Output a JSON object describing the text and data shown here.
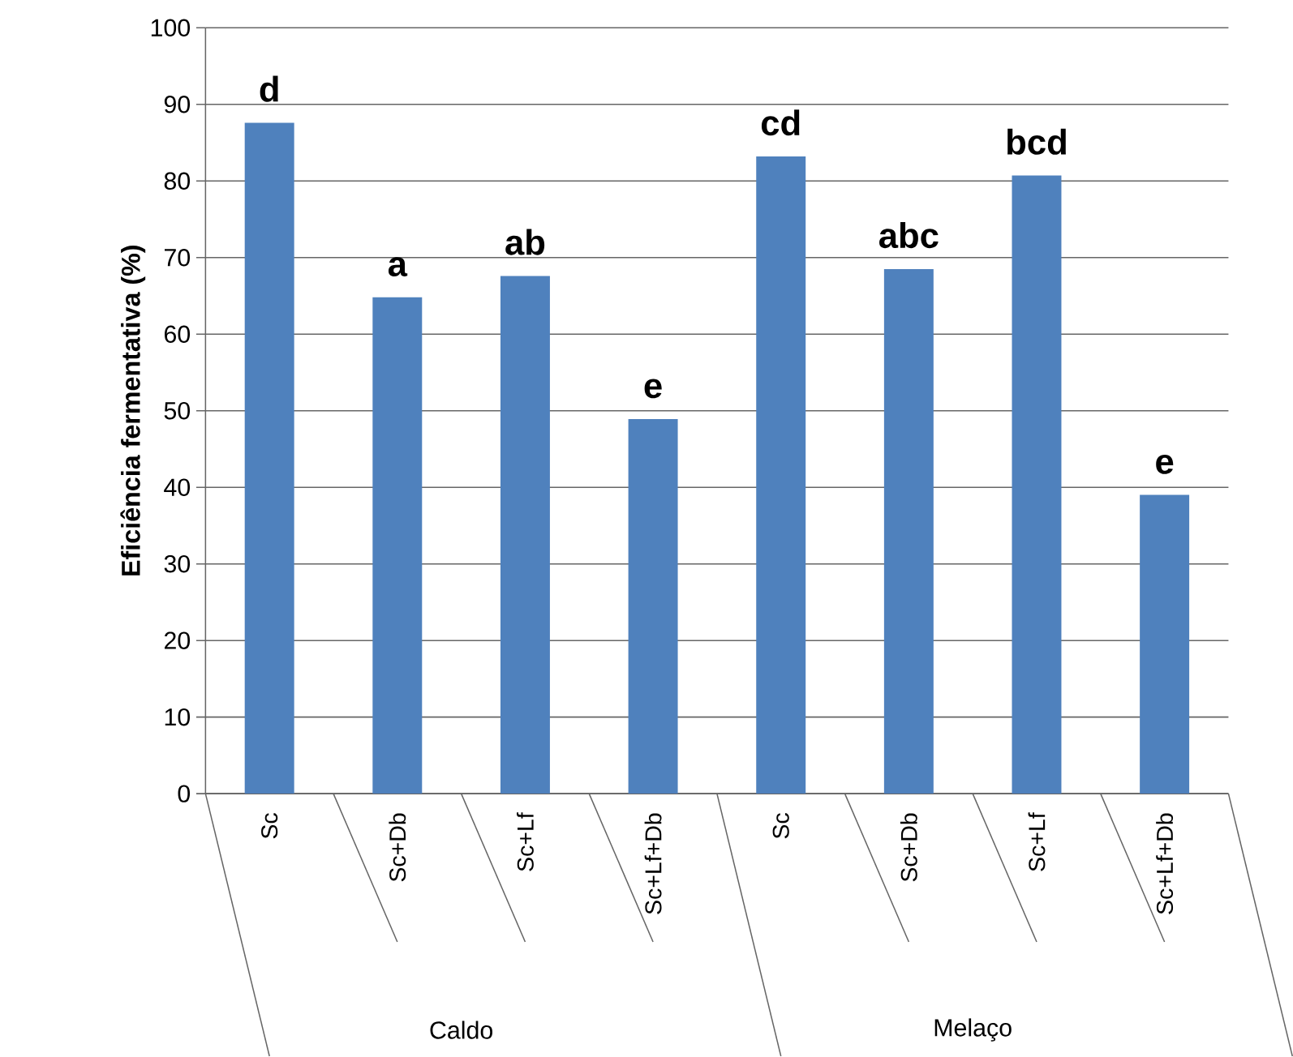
{
  "chart_data": {
    "type": "bar",
    "ylabel": "Eficiência fermentativa (%)",
    "categories": [
      "Sc",
      "Sc+Db",
      "Sc+Lf",
      "Sc+Lf+Db",
      "Sc",
      "Sc+Db",
      "Sc+Lf",
      "Sc+Lf+Db"
    ],
    "values": [
      87.6,
      64.8,
      67.6,
      48.9,
      83.2,
      68.5,
      80.7,
      39.0
    ],
    "value_labels": [
      "d",
      "a",
      "ab",
      "e",
      "cd",
      "abc",
      "bcd",
      "e"
    ],
    "color": "#4f81bd",
    "annotations": [
      "Caldo",
      "Melaço"
    ],
    "ylim": [
      0,
      100
    ],
    "yticks": [
      0,
      10,
      20,
      30,
      40,
      50,
      60,
      70,
      80,
      90,
      100
    ],
    "grid": "y"
  }
}
